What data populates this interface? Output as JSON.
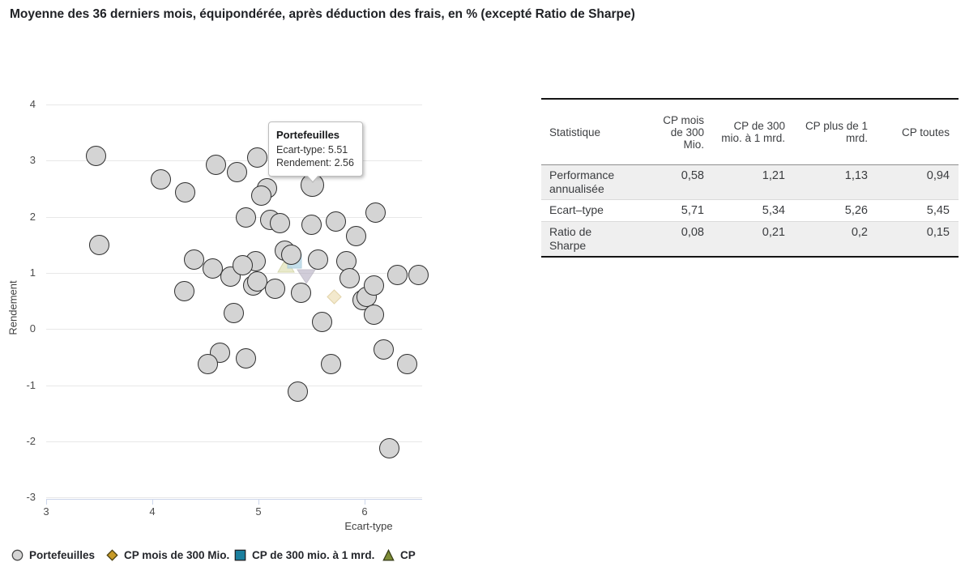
{
  "title": "Moyenne des 36 derniers mois, équipondérée, après déduction des frais, en % (excepté Ratio de Sharpe)",
  "chart_data": {
    "type": "scatter",
    "title": "",
    "xlabel": "Ecart-type",
    "ylabel": "Rendement",
    "xlim": [
      3,
      6.54
    ],
    "ylim": [
      -3,
      4
    ],
    "x_ticks": [
      3,
      4,
      5,
      6
    ],
    "y_ticks": [
      4,
      3,
      2,
      1,
      0,
      -1,
      -2,
      -3
    ],
    "grid": "horizontal",
    "legend_position": "bottom-left",
    "series": [
      {
        "name": "Portefeuilles",
        "marker": "circle",
        "color": "#d4d4d4",
        "points": [
          [
            3.47,
            3.09
          ],
          [
            3.5,
            1.5
          ],
          [
            4.08,
            2.66
          ],
          [
            4.31,
            2.44
          ],
          [
            4.6,
            2.93
          ],
          [
            4.8,
            2.8
          ],
          [
            4.99,
            3.05
          ],
          [
            5.08,
            2.51
          ],
          [
            5.03,
            2.37
          ],
          [
            5.51,
            2.56
          ],
          [
            4.88,
            1.98
          ],
          [
            5.11,
            1.95
          ],
          [
            5.2,
            1.88
          ],
          [
            5.5,
            1.86
          ],
          [
            5.73,
            1.91
          ],
          [
            6.1,
            2.08
          ],
          [
            5.92,
            1.66
          ],
          [
            4.39,
            1.23
          ],
          [
            4.57,
            1.08
          ],
          [
            4.74,
            0.94
          ],
          [
            4.3,
            0.68
          ],
          [
            5.25,
            1.39
          ],
          [
            5.31,
            1.32
          ],
          [
            4.97,
            1.21
          ],
          [
            4.85,
            1.13
          ],
          [
            5.56,
            1.24
          ],
          [
            5.83,
            1.21
          ],
          [
            5.86,
            0.91
          ],
          [
            6.31,
            0.96
          ],
          [
            6.51,
            0.96
          ],
          [
            4.95,
            0.77
          ],
          [
            4.99,
            0.85
          ],
          [
            5.16,
            0.71
          ],
          [
            5.4,
            0.64
          ],
          [
            5.98,
            0.51
          ],
          [
            6.02,
            0.57
          ],
          [
            6.09,
            0.78
          ],
          [
            6.09,
            0.26
          ],
          [
            4.77,
            0.28
          ],
          [
            5.6,
            0.12
          ],
          [
            4.64,
            -0.43
          ],
          [
            4.52,
            -0.62
          ],
          [
            4.88,
            -0.53
          ],
          [
            5.68,
            -0.62
          ],
          [
            6.18,
            -0.37
          ],
          [
            6.4,
            -0.63
          ],
          [
            5.37,
            -1.11
          ],
          [
            6.23,
            -2.12
          ]
        ]
      },
      {
        "name": "CP mois de 300 Mio.",
        "marker": "diamond",
        "color": "#c79a27",
        "points": [
          [
            5.71,
            0.58
          ]
        ]
      },
      {
        "name": "CP de 300 mio. à 1 mrd.",
        "marker": "square",
        "color": "#1b7f9e",
        "points": [
          [
            5.34,
            1.21
          ]
        ]
      },
      {
        "name": "CP plus de 1 mrd.",
        "marker": "triangle-up",
        "color": "#7d8c35",
        "points": [
          [
            5.26,
            1.13
          ]
        ]
      },
      {
        "name": "CP toutes",
        "marker": "triangle-down",
        "color": "#9d97a8",
        "points": [
          [
            5.45,
            0.94
          ]
        ]
      }
    ],
    "highlighted_point": {
      "series": "Portefeuilles",
      "x": 5.51,
      "y": 2.56
    }
  },
  "tooltip": {
    "title": "Portefeuilles",
    "line1": "Ecart-type: 5.51",
    "line2": "Rendement: 2.56"
  },
  "legend": [
    {
      "label": "Portefeuilles",
      "marker": "circle",
      "color": "#d4d4d4"
    },
    {
      "label": "CP mois de 300 Mio.",
      "marker": "diamond",
      "color": "#c79a27"
    },
    {
      "label": "CP de 300 mio. à 1 mrd.",
      "marker": "square",
      "color": "#1b7f9e"
    },
    {
      "label": "CP",
      "marker": "triangle-up",
      "color": "#7d8c35"
    }
  ],
  "table": {
    "headers": [
      "Statistique",
      "CP mois de 300 Mio.",
      "CP de 300 mio. à 1 mrd.",
      "CP plus de 1 mrd.",
      "CP toutes"
    ],
    "rows": [
      {
        "label": "Performance annualisée",
        "values": [
          "0,58",
          "1,21",
          "1,13",
          "0,94"
        ],
        "shaded": true
      },
      {
        "label": "Ecart–type",
        "values": [
          "5,71",
          "5,34",
          "5,26",
          "5,45"
        ],
        "shaded": false
      },
      {
        "label": "Ratio de Sharpe",
        "values": [
          "0,08",
          "0,21",
          "0,2",
          "0,15"
        ],
        "shaded": true
      }
    ]
  },
  "colors": {
    "axis_line": "#ccd6eb",
    "gridline": "#e8e8e8",
    "point_fill": "#d4d4d4",
    "point_stroke": "#2e2e2e",
    "table_border": "#141414",
    "row_shade": "#efefef"
  }
}
